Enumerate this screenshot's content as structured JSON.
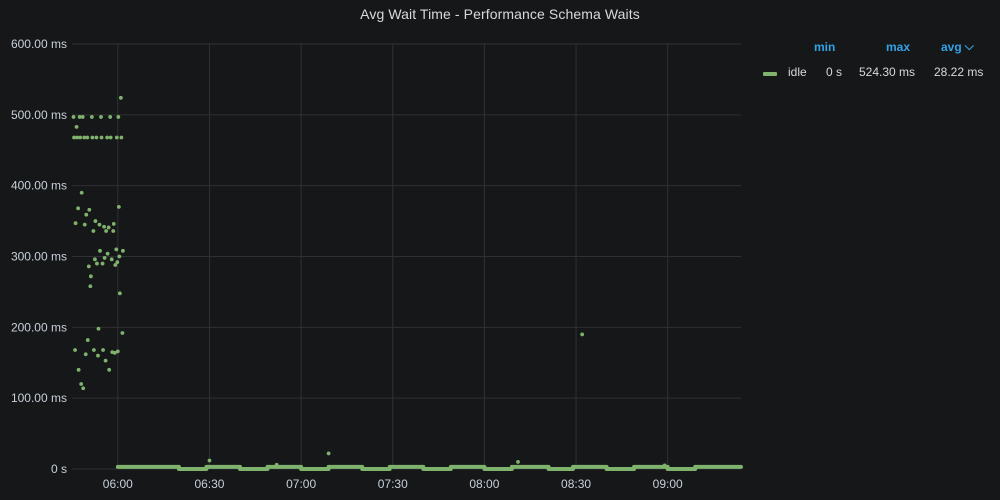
{
  "panel": {
    "title": "Avg Wait Time - Performance Schema Waits"
  },
  "legend": {
    "headers": {
      "min": "min",
      "max": "max",
      "avg": "avg"
    },
    "sort_icon": "chevron-down-icon",
    "rows": [
      {
        "name": "idle",
        "min": "0 s",
        "max": "524.30 ms",
        "avg": "28.22 ms",
        "color": "#7eb26d"
      }
    ]
  },
  "colors": {
    "background": "#161719",
    "grid": "#2f3033",
    "series": "#7eb26d",
    "legend_header": "#33a2e5",
    "text": "#d8d9da"
  },
  "chart_data": {
    "type": "scatter",
    "title": "Avg Wait Time - Performance Schema Waits",
    "xlabel": "",
    "ylabel": "",
    "ylim_ms": [
      0,
      600
    ],
    "xlim": [
      "05:45",
      "09:24"
    ],
    "grid": true,
    "legend_placement": "right",
    "y_ticks": [
      {
        "value": 0,
        "label": "0 s"
      },
      {
        "value": 100,
        "label": "100.00 ms"
      },
      {
        "value": 200,
        "label": "200.00 ms"
      },
      {
        "value": 300,
        "label": "300.00 ms"
      },
      {
        "value": 400,
        "label": "400.00 ms"
      },
      {
        "value": 500,
        "label": "500.00 ms"
      },
      {
        "value": 600,
        "label": "600.00 ms"
      }
    ],
    "x_ticks": [
      {
        "label": "06:00"
      },
      {
        "label": "06:30"
      },
      {
        "label": "07:00"
      },
      {
        "label": "07:30"
      },
      {
        "label": "08:00"
      },
      {
        "label": "08:30"
      },
      {
        "label": "09:00"
      }
    ],
    "series": [
      {
        "name": "idle",
        "unit": "ms",
        "points": [
          [
            "05:45:30",
            497
          ],
          [
            "05:45:40",
            468
          ],
          [
            "05:46:00",
            168
          ],
          [
            "05:46:10",
            347
          ],
          [
            "05:46:30",
            483
          ],
          [
            "05:46:40",
            468
          ],
          [
            "05:47:00",
            368
          ],
          [
            "05:47:10",
            140
          ],
          [
            "05:47:30",
            497
          ],
          [
            "05:47:40",
            468
          ],
          [
            "05:48:00",
            120
          ],
          [
            "05:48:10",
            390
          ],
          [
            "05:48:30",
            497
          ],
          [
            "05:48:40",
            114
          ],
          [
            "05:49:00",
            468
          ],
          [
            "05:49:10",
            345
          ],
          [
            "05:49:30",
            162
          ],
          [
            "05:49:40",
            359
          ],
          [
            "05:50:00",
            468
          ],
          [
            "05:50:10",
            182
          ],
          [
            "05:50:30",
            286
          ],
          [
            "05:50:40",
            366
          ],
          [
            "05:51:00",
            258
          ],
          [
            "05:51:10",
            272
          ],
          [
            "05:51:30",
            497
          ],
          [
            "05:51:40",
            468
          ],
          [
            "05:52:00",
            336
          ],
          [
            "05:52:10",
            168
          ],
          [
            "05:52:30",
            296
          ],
          [
            "05:52:40",
            350
          ],
          [
            "05:53:00",
            468
          ],
          [
            "05:53:10",
            290
          ],
          [
            "05:53:30",
            160
          ],
          [
            "05:53:40",
            198
          ],
          [
            "05:54:00",
            345
          ],
          [
            "05:54:10",
            308
          ],
          [
            "05:54:30",
            497
          ],
          [
            "05:54:40",
            468
          ],
          [
            "05:55:00",
            290
          ],
          [
            "05:55:10",
            168
          ],
          [
            "05:55:30",
            342
          ],
          [
            "05:55:40",
            298
          ],
          [
            "05:56:00",
            153
          ],
          [
            "05:56:10",
            336
          ],
          [
            "05:56:30",
            468
          ],
          [
            "05:56:40",
            304
          ],
          [
            "05:57:00",
            341
          ],
          [
            "05:57:10",
            140
          ],
          [
            "05:57:30",
            497
          ],
          [
            "05:57:40",
            468
          ],
          [
            "05:58:00",
            296
          ],
          [
            "05:58:10",
            165
          ],
          [
            "05:58:30",
            336
          ],
          [
            "05:58:40",
            346
          ],
          [
            "05:59:00",
            164
          ],
          [
            "05:59:10",
            288
          ],
          [
            "05:59:30",
            310
          ],
          [
            "05:59:40",
            468
          ],
          [
            "05:59:50",
            292
          ],
          [
            "06:00:00",
            166
          ],
          [
            "06:00:10",
            497
          ],
          [
            "06:00:20",
            370
          ],
          [
            "06:00:30",
            300
          ],
          [
            "06:00:40",
            248
          ],
          [
            "06:01:00",
            524
          ],
          [
            "06:01:10",
            468
          ],
          [
            "06:01:30",
            192
          ],
          [
            "06:01:40",
            308
          ],
          [
            "06:30:00",
            12
          ],
          [
            "06:52:00",
            6
          ],
          [
            "07:09:00",
            22
          ],
          [
            "08:11:00",
            10
          ],
          [
            "08:32:00",
            190
          ],
          [
            "08:59:00",
            5
          ]
        ],
        "baseline_segments": [
          [
            "06:00",
            "06:20",
            3
          ],
          [
            "06:20",
            "06:29",
            0
          ],
          [
            "06:29",
            "06:40",
            3
          ],
          [
            "06:40",
            "06:49",
            0
          ],
          [
            "06:49",
            "07:00",
            3
          ],
          [
            "07:00",
            "07:09",
            0
          ],
          [
            "07:09",
            "07:20",
            3
          ],
          [
            "07:20",
            "07:29",
            0
          ],
          [
            "07:29",
            "07:40",
            3
          ],
          [
            "07:40",
            "07:49",
            0
          ],
          [
            "07:49",
            "08:00",
            3
          ],
          [
            "08:00",
            "08:09",
            0
          ],
          [
            "08:09",
            "08:21",
            3
          ],
          [
            "08:21",
            "08:29",
            0
          ],
          [
            "08:29",
            "08:40",
            3
          ],
          [
            "08:40",
            "08:49",
            0
          ],
          [
            "08:49",
            "09:00",
            3
          ],
          [
            "09:00",
            "09:09",
            0
          ],
          [
            "09:09",
            "09:24",
            3
          ]
        ]
      }
    ]
  }
}
